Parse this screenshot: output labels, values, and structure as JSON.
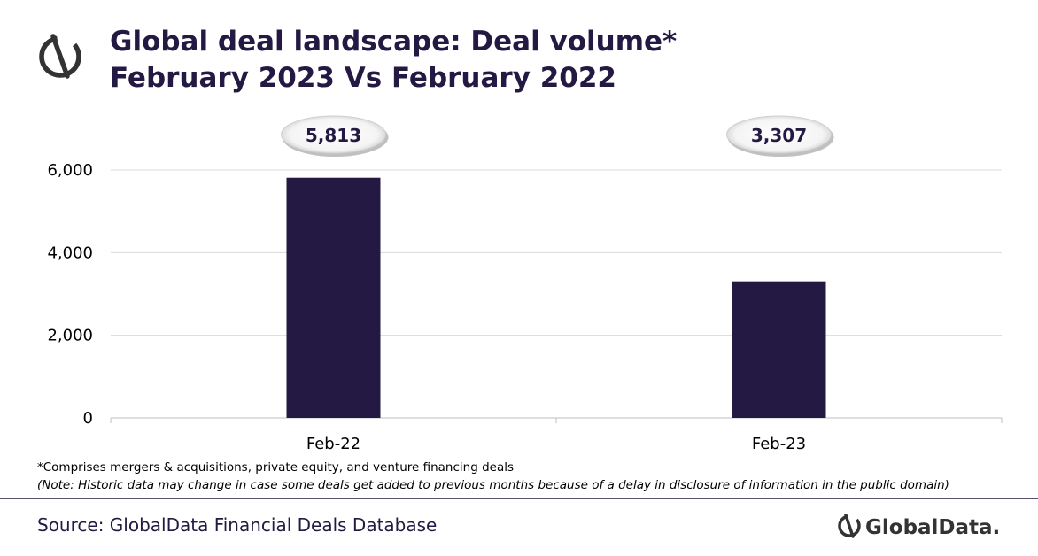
{
  "title": {
    "line1": "Global deal landscape: Deal volume*",
    "line2": "February 2023 Vs February 2022"
  },
  "chart_data": {
    "type": "bar",
    "categories": [
      "Feb-22",
      "Feb-23"
    ],
    "values": [
      5813,
      3307
    ],
    "data_labels": [
      "5,813",
      "3,307"
    ],
    "ylim": [
      0,
      6000
    ],
    "yticks": [
      0,
      2000,
      4000,
      6000
    ],
    "ytick_labels": [
      "0",
      "2,000",
      "4,000",
      "6,000"
    ],
    "grid": true,
    "bar_color": "#231942"
  },
  "footnote": "*Comprises mergers & acquisitions, private equity, and venture financing deals",
  "note": "(Note: Historic data may change in case some deals get added to previous months because of a delay in disclosure of information in the public domain)",
  "source": "Source: GlobalData Financial Deals Database",
  "brand": "GlobalData.",
  "colors": {
    "accent": "#231942",
    "grid": "#d9d9d9",
    "divider": "#231942"
  }
}
